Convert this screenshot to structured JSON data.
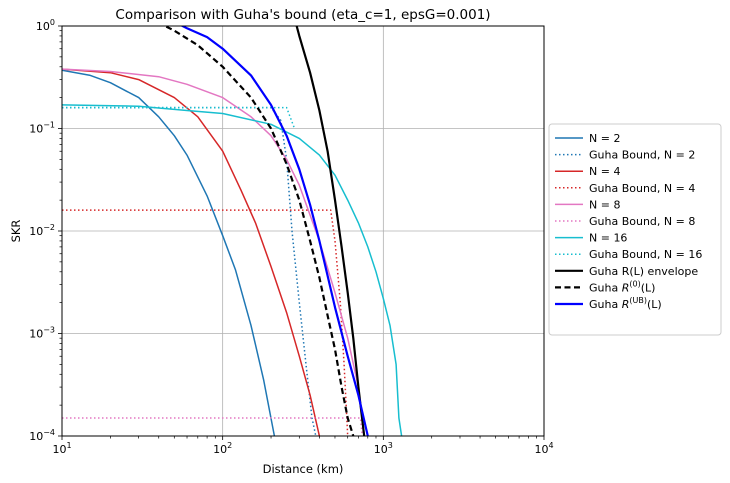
{
  "chart_data": {
    "type": "line",
    "title": "Comparison with Guha's bound (eta_c=1, epsG=0.001)",
    "xlabel": "Distance (km)",
    "ylabel": "SKR",
    "xscale": "log",
    "yscale": "log",
    "xlim": [
      10,
      10000
    ],
    "ylim": [
      0.0001,
      1
    ],
    "grid": true,
    "legend_position": "right",
    "x_ticks": [
      {
        "value": 10,
        "base": "10",
        "exp": "1"
      },
      {
        "value": 100,
        "base": "10",
        "exp": "2"
      },
      {
        "value": 1000,
        "base": "10",
        "exp": "3"
      },
      {
        "value": 10000,
        "base": "10",
        "exp": "4"
      }
    ],
    "y_ticks": [
      {
        "value": 0.0001,
        "base": "10",
        "exp": "−4"
      },
      {
        "value": 0.001,
        "base": "10",
        "exp": "−3"
      },
      {
        "value": 0.01,
        "base": "10",
        "exp": "−2"
      },
      {
        "value": 0.1,
        "base": "10",
        "exp": "−1"
      },
      {
        "value": 1,
        "base": "10",
        "exp": "0"
      }
    ],
    "series": [
      {
        "key": "n2",
        "name": "N = 2",
        "color": "#1f77b4",
        "style": "solid",
        "points": [
          [
            10,
            0.37
          ],
          [
            15,
            0.33
          ],
          [
            20,
            0.28
          ],
          [
            30,
            0.2
          ],
          [
            40,
            0.13
          ],
          [
            50,
            0.085
          ],
          [
            60,
            0.055
          ],
          [
            80,
            0.022
          ],
          [
            100,
            0.009
          ],
          [
            120,
            0.0042
          ],
          [
            150,
            0.0012
          ],
          [
            180,
            0.00035
          ],
          [
            210,
            0.0001
          ]
        ]
      },
      {
        "key": "g2",
        "name": "Guha Bound, N = 2",
        "color": "#1f77b4",
        "style": "dotted",
        "points": [
          [
            10,
            0.16
          ],
          [
            200,
            0.16
          ],
          [
            230,
            0.12
          ],
          [
            250,
            0.05
          ],
          [
            270,
            0.01
          ],
          [
            300,
            0.002
          ],
          [
            330,
            0.0005
          ],
          [
            360,
            0.00015
          ],
          [
            380,
            0.0001
          ]
        ]
      },
      {
        "key": "n4",
        "name": "N = 4",
        "color": "#d62728",
        "style": "solid",
        "points": [
          [
            10,
            0.38
          ],
          [
            20,
            0.35
          ],
          [
            30,
            0.3
          ],
          [
            50,
            0.2
          ],
          [
            70,
            0.13
          ],
          [
            100,
            0.06
          ],
          [
            130,
            0.025
          ],
          [
            160,
            0.012
          ],
          [
            200,
            0.0045
          ],
          [
            250,
            0.0016
          ],
          [
            300,
            0.0006
          ],
          [
            350,
            0.00025
          ],
          [
            400,
            0.0001
          ]
        ]
      },
      {
        "key": "g4",
        "name": "Guha Bound, N = 4",
        "color": "#d62728",
        "style": "dotted",
        "points": [
          [
            10,
            0.016
          ],
          [
            470,
            0.016
          ],
          [
            500,
            0.008
          ],
          [
            540,
            0.002
          ],
          [
            570,
            0.0005
          ],
          [
            600,
            0.0001
          ]
        ]
      },
      {
        "key": "n8",
        "name": "N = 8",
        "color": "#e377c2",
        "style": "solid",
        "points": [
          [
            10,
            0.38
          ],
          [
            20,
            0.36
          ],
          [
            40,
            0.32
          ],
          [
            60,
            0.27
          ],
          [
            100,
            0.2
          ],
          [
            150,
            0.13
          ],
          [
            200,
            0.085
          ],
          [
            250,
            0.05
          ],
          [
            300,
            0.028
          ],
          [
            400,
            0.008
          ],
          [
            500,
            0.0025
          ],
          [
            600,
            0.0009
          ],
          [
            700,
            0.0003
          ],
          [
            760,
            0.0001
          ]
        ]
      },
      {
        "key": "g8",
        "name": "Guha Bound, N = 8",
        "color": "#e377c2",
        "style": "dotted",
        "points": [
          [
            10,
            0.00015
          ],
          [
            720,
            0.00015
          ],
          [
            740,
            0.0001
          ]
        ]
      },
      {
        "key": "n16",
        "name": "N = 16",
        "color": "#17becf",
        "style": "solid",
        "points": [
          [
            10,
            0.17
          ],
          [
            30,
            0.165
          ],
          [
            60,
            0.15
          ],
          [
            100,
            0.14
          ],
          [
            200,
            0.11
          ],
          [
            300,
            0.08
          ],
          [
            400,
            0.055
          ],
          [
            500,
            0.035
          ],
          [
            600,
            0.02
          ],
          [
            700,
            0.012
          ],
          [
            800,
            0.007
          ],
          [
            900,
            0.004
          ],
          [
            1000,
            0.0022
          ],
          [
            1100,
            0.0012
          ],
          [
            1200,
            0.0005
          ],
          [
            1250,
            0.00015
          ],
          [
            1300,
            0.0001
          ]
        ]
      },
      {
        "key": "g16",
        "name": "Guha Bound, N = 16",
        "color": "#17becf",
        "style": "dotted",
        "points": [
          [
            10,
            0.16
          ],
          [
            250,
            0.16
          ],
          [
            280,
            0.1
          ]
        ]
      },
      {
        "key": "env",
        "name": "Guha R(L) envelope",
        "color": "#000000",
        "style": "solid",
        "width": 2.2,
        "points": [
          [
            280,
            1.2
          ],
          [
            300,
            0.8
          ],
          [
            350,
            0.35
          ],
          [
            400,
            0.15
          ],
          [
            450,
            0.06
          ],
          [
            500,
            0.02
          ],
          [
            550,
            0.007
          ],
          [
            600,
            0.0025
          ],
          [
            650,
            0.0009
          ],
          [
            700,
            0.0003
          ],
          [
            760,
            0.0001
          ]
        ]
      },
      {
        "key": "r0",
        "name": "Guha R^{(0)}(L)",
        "label_base": "Guha ",
        "label_math": "R",
        "label_sup": "(0)",
        "label_tail": "(L)",
        "color": "#000000",
        "style": "dashed",
        "width": 2.2,
        "points": [
          [
            35,
            1.2
          ],
          [
            50,
            0.9
          ],
          [
            70,
            0.65
          ],
          [
            100,
            0.4
          ],
          [
            150,
            0.2
          ],
          [
            200,
            0.1
          ],
          [
            250,
            0.045
          ],
          [
            300,
            0.02
          ],
          [
            350,
            0.008
          ],
          [
            400,
            0.0035
          ],
          [
            450,
            0.0015
          ],
          [
            500,
            0.0007
          ],
          [
            550,
            0.0003
          ],
          [
            600,
            0.00015
          ],
          [
            650,
            0.0001
          ]
        ]
      },
      {
        "key": "rub",
        "name": "Guha R^{(UB)}(L)",
        "label_base": "Guha ",
        "label_math": "R",
        "label_sup": "(UB)",
        "label_tail": "(L)",
        "color": "#0000ff",
        "style": "solid",
        "width": 2.2,
        "points": [
          [
            45,
            1.2
          ],
          [
            60,
            0.95
          ],
          [
            80,
            0.78
          ],
          [
            100,
            0.6
          ],
          [
            150,
            0.33
          ],
          [
            200,
            0.17
          ],
          [
            250,
            0.085
          ],
          [
            300,
            0.04
          ],
          [
            350,
            0.018
          ],
          [
            400,
            0.008
          ],
          [
            500,
            0.0018
          ],
          [
            600,
            0.0006
          ],
          [
            700,
            0.00025
          ],
          [
            800,
            0.0001
          ]
        ]
      }
    ]
  }
}
